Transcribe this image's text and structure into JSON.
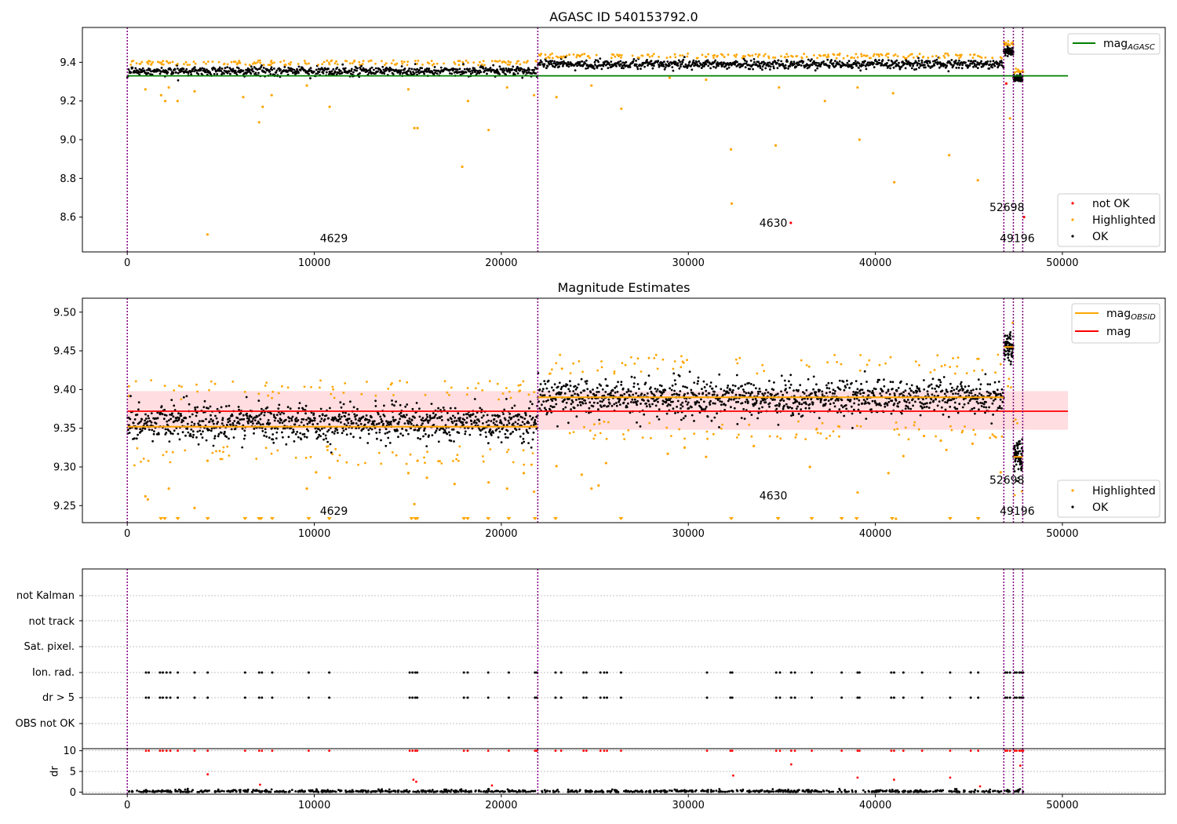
{
  "chart_data": [
    {
      "type": "scatter",
      "title": "AGASC ID 540153792.0",
      "xlim": [
        -2400,
        55500
      ],
      "ylim": [
        8.42,
        9.58
      ],
      "xticks": [
        0,
        10000,
        20000,
        30000,
        40000,
        50000
      ],
      "yticks": [
        8.6,
        8.8,
        9.0,
        9.2,
        9.4
      ],
      "ytick_labels": [
        "8.6",
        "8.8",
        "9.0",
        "9.2",
        "9.4"
      ],
      "vlines": [
        0,
        21950,
        46870,
        47380,
        47880
      ],
      "hline": {
        "name": "mag_AGASC",
        "label_main": "mag",
        "label_sub": "AGASC",
        "y": 9.33,
        "x": [
          0,
          50300
        ],
        "color": "#008000"
      },
      "segments": [
        {
          "x": [
            0,
            21950
          ],
          "mean": 9.355,
          "sd": 0.012
        },
        {
          "x": [
            21950,
            46870
          ],
          "mean": 9.39,
          "sd": 0.012
        },
        {
          "x": [
            46870,
            47380
          ],
          "mean": 9.455,
          "sd": 0.01
        },
        {
          "x": [
            47380,
            47880
          ],
          "mean": 9.315,
          "sd": 0.01
        }
      ],
      "highlighted": [
        [
          970,
          9.26
        ],
        [
          1810,
          9.23
        ],
        [
          2030,
          9.2
        ],
        [
          2220,
          9.27
        ],
        [
          2690,
          9.2
        ],
        [
          3600,
          9.25
        ],
        [
          4290,
          8.51
        ],
        [
          6200,
          9.22
        ],
        [
          7050,
          9.09
        ],
        [
          7240,
          9.17
        ],
        [
          7720,
          9.23
        ],
        [
          9600,
          9.28
        ],
        [
          10820,
          9.17
        ],
        [
          15030,
          9.26
        ],
        [
          15350,
          9.06
        ],
        [
          15520,
          9.06
        ],
        [
          17910,
          8.86
        ],
        [
          18220,
          9.2
        ],
        [
          19320,
          9.05
        ],
        [
          20310,
          9.27
        ],
        [
          21750,
          9.23
        ],
        [
          22950,
          9.22
        ],
        [
          24820,
          9.28
        ],
        [
          26420,
          9.16
        ],
        [
          29000,
          9.32
        ],
        [
          30950,
          9.31
        ],
        [
          32280,
          8.95
        ],
        [
          32320,
          8.67
        ],
        [
          34670,
          8.97
        ],
        [
          34850,
          9.27
        ],
        [
          37300,
          9.2
        ],
        [
          39050,
          9.27
        ],
        [
          39150,
          9.0
        ],
        [
          40950,
          9.24
        ],
        [
          41010,
          8.78
        ],
        [
          43950,
          8.92
        ],
        [
          45480,
          8.79
        ],
        [
          47200,
          9.11
        ],
        [
          47900,
          9.35
        ]
      ],
      "not_ok": [
        [
          35480,
          8.57
        ],
        [
          47000,
          9.29
        ],
        [
          47950,
          8.6
        ]
      ],
      "annotations": [
        {
          "text": "4629",
          "x": 10300,
          "y": 8.47
        },
        {
          "text": "4630",
          "x": 33800,
          "y": 8.55
        },
        {
          "text": "52698",
          "x": 46100,
          "y": 8.63
        },
        {
          "text": "49196",
          "x": 46650,
          "y": 8.47
        }
      ],
      "legend": {
        "entries": [
          "not OK",
          "Highlighted",
          "OK"
        ],
        "placement": "lower right"
      },
      "colors": {
        "ok": "#000000",
        "highlighted": "#ffa500",
        "not_ok": "#ff0000",
        "vline": "#800080",
        "agasc": "#008000"
      }
    },
    {
      "type": "scatter",
      "title": "Magnitude Estimates",
      "xlim": [
        -2400,
        55500
      ],
      "ylim": [
        9.228,
        9.518
      ],
      "xticks": [
        0,
        10000,
        20000,
        30000,
        40000,
        50000
      ],
      "yticks": [
        9.25,
        9.3,
        9.35,
        9.4,
        9.45,
        9.5
      ],
      "ytick_labels": [
        "9.25",
        "9.30",
        "9.35",
        "9.40",
        "9.45",
        "9.50"
      ],
      "vlines": [
        0,
        21950,
        46870,
        47380,
        47880
      ],
      "mag": {
        "name": "mag",
        "y": 9.372,
        "band": [
          9.348,
          9.398
        ],
        "x": [
          0,
          50300
        ],
        "color": "#ff0000",
        "band_color": "#ffd7dc"
      },
      "segments": [
        {
          "x": [
            0,
            21950
          ],
          "mag_obsid": 9.352,
          "mean": 9.357,
          "sd": 0.012
        },
        {
          "x": [
            21950,
            46870
          ],
          "mag_obsid": 9.39,
          "mean": 9.39,
          "sd": 0.011
        },
        {
          "x": [
            46870,
            47380
          ],
          "mag_obsid": 9.455,
          "mean": 9.455,
          "sd": 0.01
        },
        {
          "x": [
            47380,
            47880
          ],
          "mag_obsid": 9.313,
          "mean": 9.313,
          "sd": 0.012
        }
      ],
      "highlighted": [
        [
          970,
          9.262
        ],
        [
          1100,
          9.258
        ],
        [
          2220,
          9.272
        ],
        [
          3600,
          9.247
        ],
        [
          4290,
          9.308
        ],
        [
          9600,
          9.272
        ],
        [
          10100,
          9.293
        ],
        [
          10820,
          9.286
        ],
        [
          15030,
          9.292
        ],
        [
          15350,
          9.252
        ],
        [
          15520,
          9.308
        ],
        [
          16020,
          9.286
        ],
        [
          17500,
          9.278
        ],
        [
          19320,
          9.28
        ],
        [
          20310,
          9.272
        ],
        [
          21200,
          9.292
        ],
        [
          21750,
          9.268
        ],
        [
          22950,
          9.301
        ],
        [
          24300,
          9.29
        ],
        [
          24820,
          9.272
        ],
        [
          25200,
          9.276
        ],
        [
          25600,
          9.305
        ],
        [
          28900,
          9.317
        ],
        [
          29800,
          9.325
        ],
        [
          30950,
          9.313
        ],
        [
          33500,
          9.327
        ],
        [
          36500,
          9.3
        ],
        [
          39050,
          9.267
        ],
        [
          40700,
          9.292
        ],
        [
          41100,
          9.233
        ],
        [
          41500,
          9.314
        ],
        [
          42600,
          9.34
        ],
        [
          43500,
          9.334
        ],
        [
          43800,
          9.322
        ],
        [
          45200,
          9.33
        ],
        [
          46700,
          9.293
        ]
      ],
      "low_markers_x": [
        1800,
        2000,
        2700,
        4300,
        6300,
        7050,
        7150,
        7750,
        9700,
        10800,
        15200,
        15400,
        15500,
        18000,
        18200,
        19300,
        20400,
        21800,
        22900,
        26400,
        32300,
        34800,
        36600,
        38200,
        39000,
        40900,
        44000,
        45500
      ],
      "annotations": [
        {
          "text": "4629",
          "x": 10300,
          "y": 9.238
        },
        {
          "text": "4630",
          "x": 33800,
          "y": 9.258
        },
        {
          "text": "52698",
          "x": 46100,
          "y": 9.278
        },
        {
          "text": "49196",
          "x": 46650,
          "y": 9.238
        }
      ],
      "legend_top": {
        "entries": [
          {
            "main": "mag",
            "sub": "OBSID",
            "color": "#ffa500"
          },
          {
            "main": "mag",
            "sub": "",
            "color": "#ff0000"
          }
        ],
        "placement": "upper right"
      },
      "legend": {
        "entries": [
          "Highlighted",
          "OK"
        ],
        "placement": "lower right"
      },
      "colors": {
        "ok": "#000000",
        "highlighted": "#ffa500",
        "mag_obsid": "#ffa500",
        "vline": "#800080"
      }
    },
    {
      "type": "scatter",
      "title": "",
      "xlim": [
        -2400,
        55500
      ],
      "xticks": [
        0,
        10000,
        20000,
        30000,
        40000,
        50000
      ],
      "flag_rows": [
        "not Kalman",
        "not track",
        "Sat. pixel.",
        "Ion. rad.",
        "dr > 5",
        "OBS not OK"
      ],
      "flag_points_x": [
        1000,
        1150,
        1750,
        1900,
        2100,
        2300,
        2700,
        3600,
        4300,
        6300,
        7050,
        7200,
        7750,
        9700,
        10800,
        15100,
        15250,
        15400,
        15500,
        18000,
        18200,
        19300,
        20400,
        21800,
        21900,
        22900,
        23200,
        24400,
        24550,
        25300,
        25500,
        25650,
        26400,
        31000,
        32250,
        32350,
        34700,
        34900,
        35500,
        35700,
        36600,
        38200,
        39050,
        39150,
        40850,
        41000,
        41500,
        42500,
        44000,
        45100,
        45500,
        46950,
        47050,
        47200,
        47450,
        47550,
        47700,
        47800,
        47900
      ],
      "dr": {
        "ylabel": "dr",
        "ylim": [
          -0.5,
          10.5
        ],
        "yticks": [
          0,
          5,
          10
        ],
        "ytick_labels": [
          "0",
          "5",
          "10"
        ],
        "capped_value": 10,
        "scattered": [
          [
            4300,
            4.3
          ],
          [
            7100,
            1.8
          ],
          [
            15300,
            3.0
          ],
          [
            15450,
            2.5
          ],
          [
            19500,
            1.6
          ],
          [
            32400,
            4.0
          ],
          [
            35500,
            6.7
          ],
          [
            39050,
            3.5
          ],
          [
            41000,
            3.0
          ],
          [
            44000,
            3.5
          ],
          [
            45600,
            1.4
          ],
          [
            47750,
            6.4
          ]
        ]
      },
      "colors": {
        "ok": "#000000",
        "dr_capped": "#ff0000",
        "vline": "#800080",
        "grid": "#b0b0b0"
      }
    }
  ]
}
